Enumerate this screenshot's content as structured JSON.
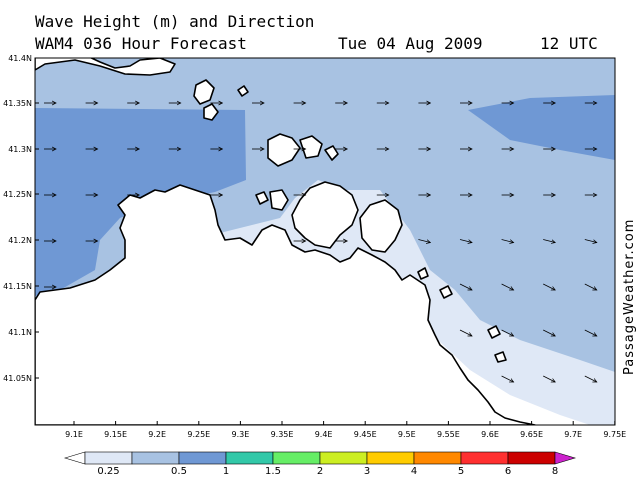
{
  "header": {
    "title": "Wave Height (m) and Direction",
    "model": "WAM4 036 Hour Forecast",
    "date": "Tue 04 Aug 2009",
    "time": "12 UTC"
  },
  "watermark": "PassageWeather.com",
  "axes": {
    "lat_labels": [
      "41.4N",
      "41.35N",
      "41.3N",
      "41.25N",
      "41.2N",
      "41.15N",
      "41.1N",
      "41.05N"
    ],
    "lon_labels": [
      "9.1E",
      "9.15E",
      "9.2E",
      "9.25E",
      "9.3E",
      "9.35E",
      "9.4E",
      "9.45E",
      "9.5E",
      "9.55E",
      "9.6E",
      "9.65E",
      "9.7E",
      "9.75E"
    ]
  },
  "legend": {
    "labels": [
      "0.25",
      "0.5",
      "1",
      "1.5",
      "2",
      "3",
      "4",
      "5",
      "6",
      "8"
    ],
    "colors": [
      "#ffffff",
      "#dfe8f6",
      "#a8c2e2",
      "#6f98d4",
      "#32c8a8",
      "#66ee66",
      "#ccee22",
      "#ffcc00",
      "#ff8800",
      "#ff3030",
      "#cc0000",
      "#cc22cc"
    ]
  },
  "fill_colors": {
    "lt025": "#ffffff",
    "c025": "#dfe8f6",
    "c05": "#a8c2e2",
    "c1": "#6f98d4",
    "land": "#ffffff"
  }
}
